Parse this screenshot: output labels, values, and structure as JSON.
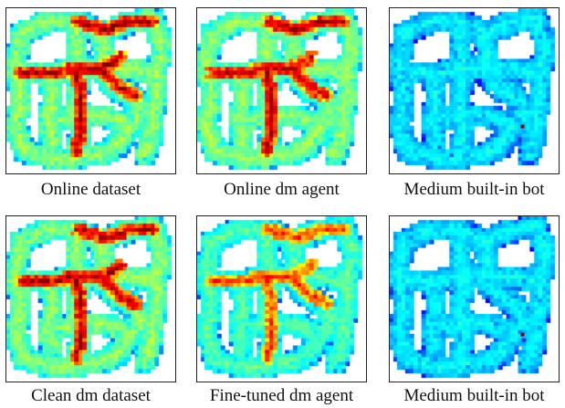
{
  "figure": {
    "panels": [
      {
        "caption": "Online dataset",
        "visit_intensity": "high",
        "colormap": "jet"
      },
      {
        "caption": "Online dm agent",
        "visit_intensity": "high",
        "colormap": "jet"
      },
      {
        "caption": "Medium built-in bot",
        "visit_intensity": "low",
        "colormap": "jet",
        "marker_color": "#8b0000"
      },
      {
        "caption": "Clean dm dataset",
        "visit_intensity": "high",
        "colormap": "jet"
      },
      {
        "caption": "Fine-tuned dm agent",
        "visit_intensity": "medium",
        "colormap": "jet"
      },
      {
        "caption": "Medium built-in bot",
        "visit_intensity": "low",
        "colormap": "jet",
        "marker_color": "#8b0000"
      }
    ]
  }
}
